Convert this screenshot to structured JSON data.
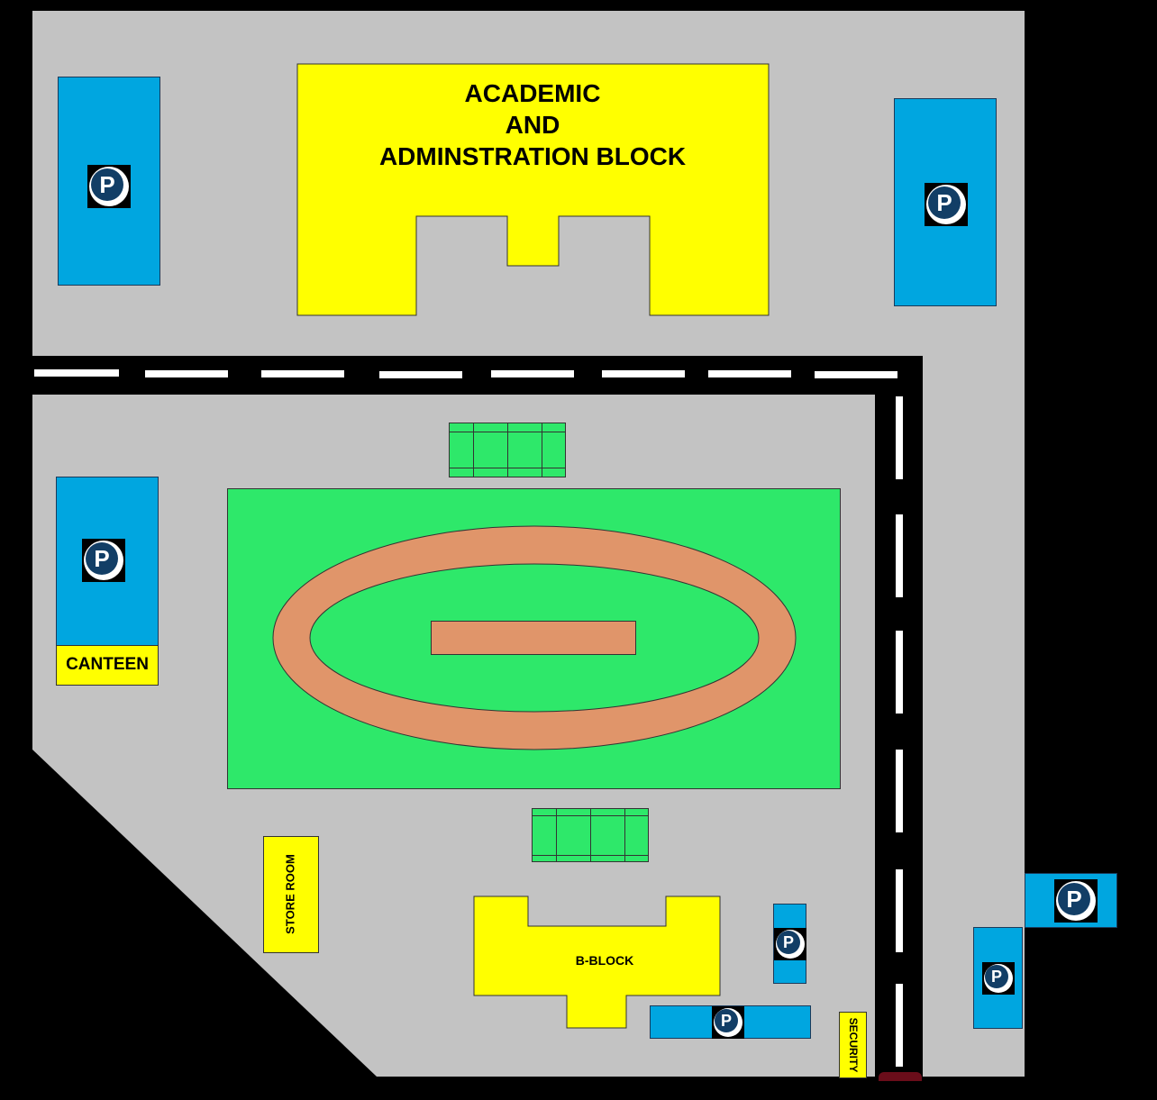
{
  "map": {
    "colors": {
      "background": "#000000",
      "ground": "#c3c3c3",
      "road": "#000000",
      "road_marking": "#ffffff",
      "parking": "#00a6e0",
      "building": "#ffff00",
      "field": "#2ee86a",
      "track": "#e0956a"
    },
    "parking_symbol": "P",
    "buildings": {
      "academic_line1": "ACADEMIC",
      "academic_line2": "AND",
      "academic_line3": "ADMINSTRATION BLOCK",
      "canteen": "CANTEEN",
      "store_room": "STORE ROOM",
      "b_block": "B-BLOCK",
      "security": "SECURITY"
    },
    "icons": [
      "parking-icon"
    ]
  }
}
